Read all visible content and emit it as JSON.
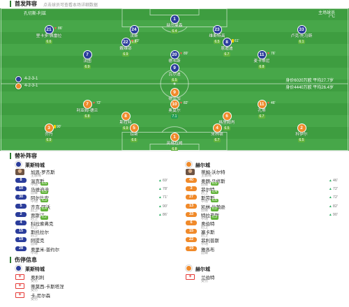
{
  "header": {
    "title": "首发阵容",
    "subtitle": "点击球员可查看本场详细数据"
  },
  "pitch": {
    "top_left": "孔切斯-利兹",
    "top_right": "主场球员",
    "weather": "7°C"
  },
  "colors": {
    "rating_high": "#1f9d55",
    "rating_mid": "#62b33b",
    "sub_out": "#ff5a4f",
    "sub_in": "#27ae60",
    "yellow_card": "#ffd400",
    "injury": "#e53935"
  },
  "teams": {
    "home": {
      "name": "莱斯特城",
      "formation": "4-2-3-1",
      "value": "身价6020万欧 平均27.7岁",
      "color": "#2b3d9b"
    },
    "away": {
      "name": "赫尔城",
      "formation": "4-2-3-1",
      "value": "身价4440万欧 平均26.4岁",
      "color": "#f08a2a"
    }
  },
  "home_lineup": [
    {
      "number": "1",
      "name": "赫尔曼森",
      "rating": "6.4"
    },
    {
      "number": "21",
      "name": "里卡多-佩雷拉",
      "rating": "6.6",
      "event": {
        "type": "out",
        "minute": "86'"
      }
    },
    {
      "number": "24",
      "name": "法斯",
      "rating": "6.8"
    },
    {
      "number": "23",
      "name": "维斯特高",
      "rating": "6.5"
    },
    {
      "number": "33",
      "name": "卢克-托马斯",
      "rating": "6.1"
    },
    {
      "number": "22",
      "name": "戴维耶",
      "rating": "6.9",
      "event": {
        "type": "out",
        "minute": "70'"
      }
    },
    {
      "number": "8",
      "name": "恩迪迪",
      "rating": "6.7",
      "event": {
        "type": "yellow",
        "minute": "61'"
      }
    },
    {
      "number": "7",
      "name": "法图",
      "rating": "6.9"
    },
    {
      "number": "20",
      "name": "德韦斯",
      "rating": "7.2",
      "event": {
        "type": "out",
        "minute": "89'"
      }
    },
    {
      "number": "11",
      "name": "麦卡蒂尼",
      "rating": "6.8",
      "event": {
        "type": "out",
        "minute": "76'"
      }
    },
    {
      "number": "9",
      "name": "瓦尔迪",
      "rating": "6.5"
    }
  ],
  "away_lineup": [
    {
      "number": "9",
      "name": "德兰加",
      "rating": "6.6"
    },
    {
      "number": "7",
      "name": "利亚姆-德兰",
      "rating": "6.8",
      "event": {
        "type": "out",
        "minute": "72'"
      }
    },
    {
      "number": "10",
      "name": "奥莫尔",
      "rating": "7.1",
      "event": {
        "type": "out",
        "minute": "82'"
      }
    },
    {
      "number": "11",
      "name": "孔蒂",
      "rating": "6.7",
      "event": {
        "type": "out",
        "minute": "46'"
      }
    },
    {
      "number": "8",
      "name": "斯拉特",
      "rating": "6.9"
    },
    {
      "number": "6",
      "name": "格里姆肖",
      "rating": "6.5"
    },
    {
      "number": "3",
      "name": "乔丹",
      "rating": "6.9",
      "event": {
        "type": "yellow",
        "minute": "90'"
      }
    },
    {
      "number": "5",
      "name": "琼斯",
      "rating": "6.6"
    },
    {
      "number": "4",
      "name": "米林顿",
      "rating": "6.7"
    },
    {
      "number": "2",
      "name": "科伊尔",
      "rating": "6.5"
    },
    {
      "number": "1",
      "name": "英格拉姆",
      "rating": "6.8"
    }
  ],
  "bench_title": "替补阵容",
  "bench": {
    "home": {
      "coach": {
        "name": "加恩-罗杰斯",
        "role": "主教练"
      },
      "players": [
        {
          "number": "8",
          "name": "温克斯",
          "position": "中场",
          "rating": "6.6",
          "minute": "69'"
        },
        {
          "number": "10",
          "name": "马维迪迪",
          "position": "前锋",
          "rating": "6.5",
          "minute": "78'"
        },
        {
          "number": "30",
          "name": "阿尔比安",
          "position": "中场",
          "rating": "6.3",
          "minute": "71'"
        },
        {
          "number": "5",
          "name": "齐克-阿沃",
          "position": "后卫",
          "rating": "6.4",
          "minute": "90'"
        },
        {
          "number": "2",
          "name": "贾斯汀",
          "position": "后卫",
          "rating": "6.2",
          "minute": "86'"
        },
        {
          "number": "4",
          "name": "科拉索弗克",
          "position": "后卫"
        },
        {
          "number": "15",
          "name": "斯托拉尔",
          "position": "后卫"
        },
        {
          "number": "19",
          "name": "阿提克",
          "position": "前锋"
        },
        {
          "number": "28",
          "name": "奥里米-普约尔",
          "position": "中场"
        }
      ]
    },
    "away": {
      "coach": {
        "name": "蒂姆-沃尔特",
        "role": "主教练"
      },
      "players": [
        {
          "number": "40",
          "name": "奥朗-马修斯",
          "position": "前锋",
          "rating": "6.5",
          "minute": "46'"
        },
        {
          "number": "3",
          "name": "菲尔特",
          "position": "后卫",
          "rating": "6.4",
          "minute": "72'"
        },
        {
          "number": "27",
          "name": "斯劳斯",
          "position": "中场",
          "rating": "6.6",
          "minute": "72'"
        },
        {
          "number": "13",
          "name": "凯林-约翰逊",
          "position": "前锋",
          "rating": "6.2",
          "minute": "82'"
        },
        {
          "number": "33",
          "name": "特拉弗斯",
          "position": "中场",
          "rating": "6.3",
          "minute": "90'"
        },
        {
          "number": "6",
          "name": "奥伯特",
          "position": "后卫"
        },
        {
          "number": "15",
          "name": "塞卡斯",
          "position": "后卫"
        },
        {
          "number": "22",
          "name": "菲利普斯",
          "position": "中场"
        },
        {
          "number": "19",
          "name": "雅各布",
          "position": "前锋"
        }
      ]
    }
  },
  "injury_title": "伤停信息",
  "injuries": {
    "home": [
      {
        "name": "奥利利",
        "status": "受伤"
      },
      {
        "name": "蒂莫西-卡斯塔涅",
        "status": "受伤"
      },
      {
        "name": "卡-尼尔森",
        "status": "受伤"
      }
    ],
    "away": [
      {
        "name": "兰伯特",
        "status": "受伤"
      }
    ]
  }
}
